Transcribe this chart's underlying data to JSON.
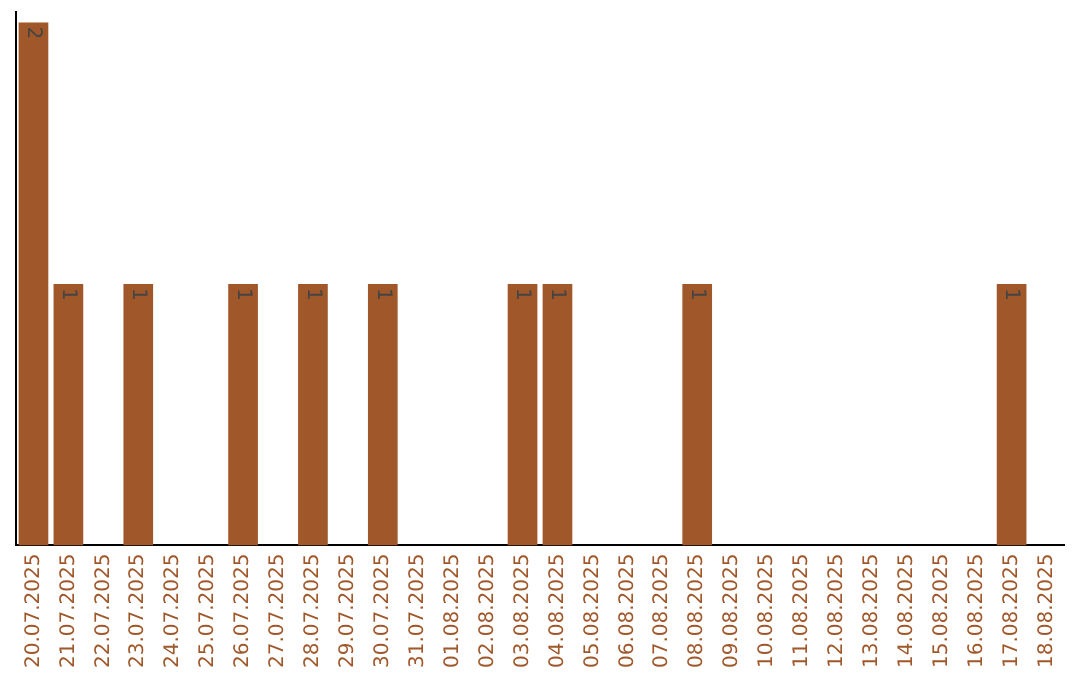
{
  "chart_data": {
    "type": "bar",
    "categories": [
      "20.07.2025",
      "21.07.2025",
      "22.07.2025",
      "23.07.2025",
      "24.07.2025",
      "25.07.2025",
      "26.07.2025",
      "27.07.2025",
      "28.07.2025",
      "29.07.2025",
      "30.07.2025",
      "31.07.2025",
      "01.08.2025",
      "02.08.2025",
      "03.08.2025",
      "04.08.2025",
      "05.08.2025",
      "06.08.2025",
      "07.08.2025",
      "08.08.2025",
      "09.08.2025",
      "10.08.2025",
      "11.08.2025",
      "12.08.2025",
      "13.08.2025",
      "14.08.2025",
      "15.08.2025",
      "16.08.2025",
      "17.08.2025",
      "18.08.2025"
    ],
    "values": [
      2,
      1,
      0,
      1,
      0,
      0,
      1,
      0,
      1,
      0,
      1,
      0,
      0,
      0,
      1,
      1,
      0,
      0,
      0,
      1,
      0,
      0,
      0,
      0,
      0,
      0,
      0,
      0,
      1,
      0
    ],
    "value_labels": [
      "2",
      "1",
      null,
      "1",
      null,
      null,
      "1",
      null,
      "1",
      null,
      "1",
      null,
      null,
      null,
      "1",
      "1",
      null,
      null,
      null,
      "1",
      null,
      null,
      null,
      null,
      null,
      null,
      null,
      null,
      "1",
      null
    ],
    "color": "#a0582b",
    "grid": false,
    "legend": false
  }
}
